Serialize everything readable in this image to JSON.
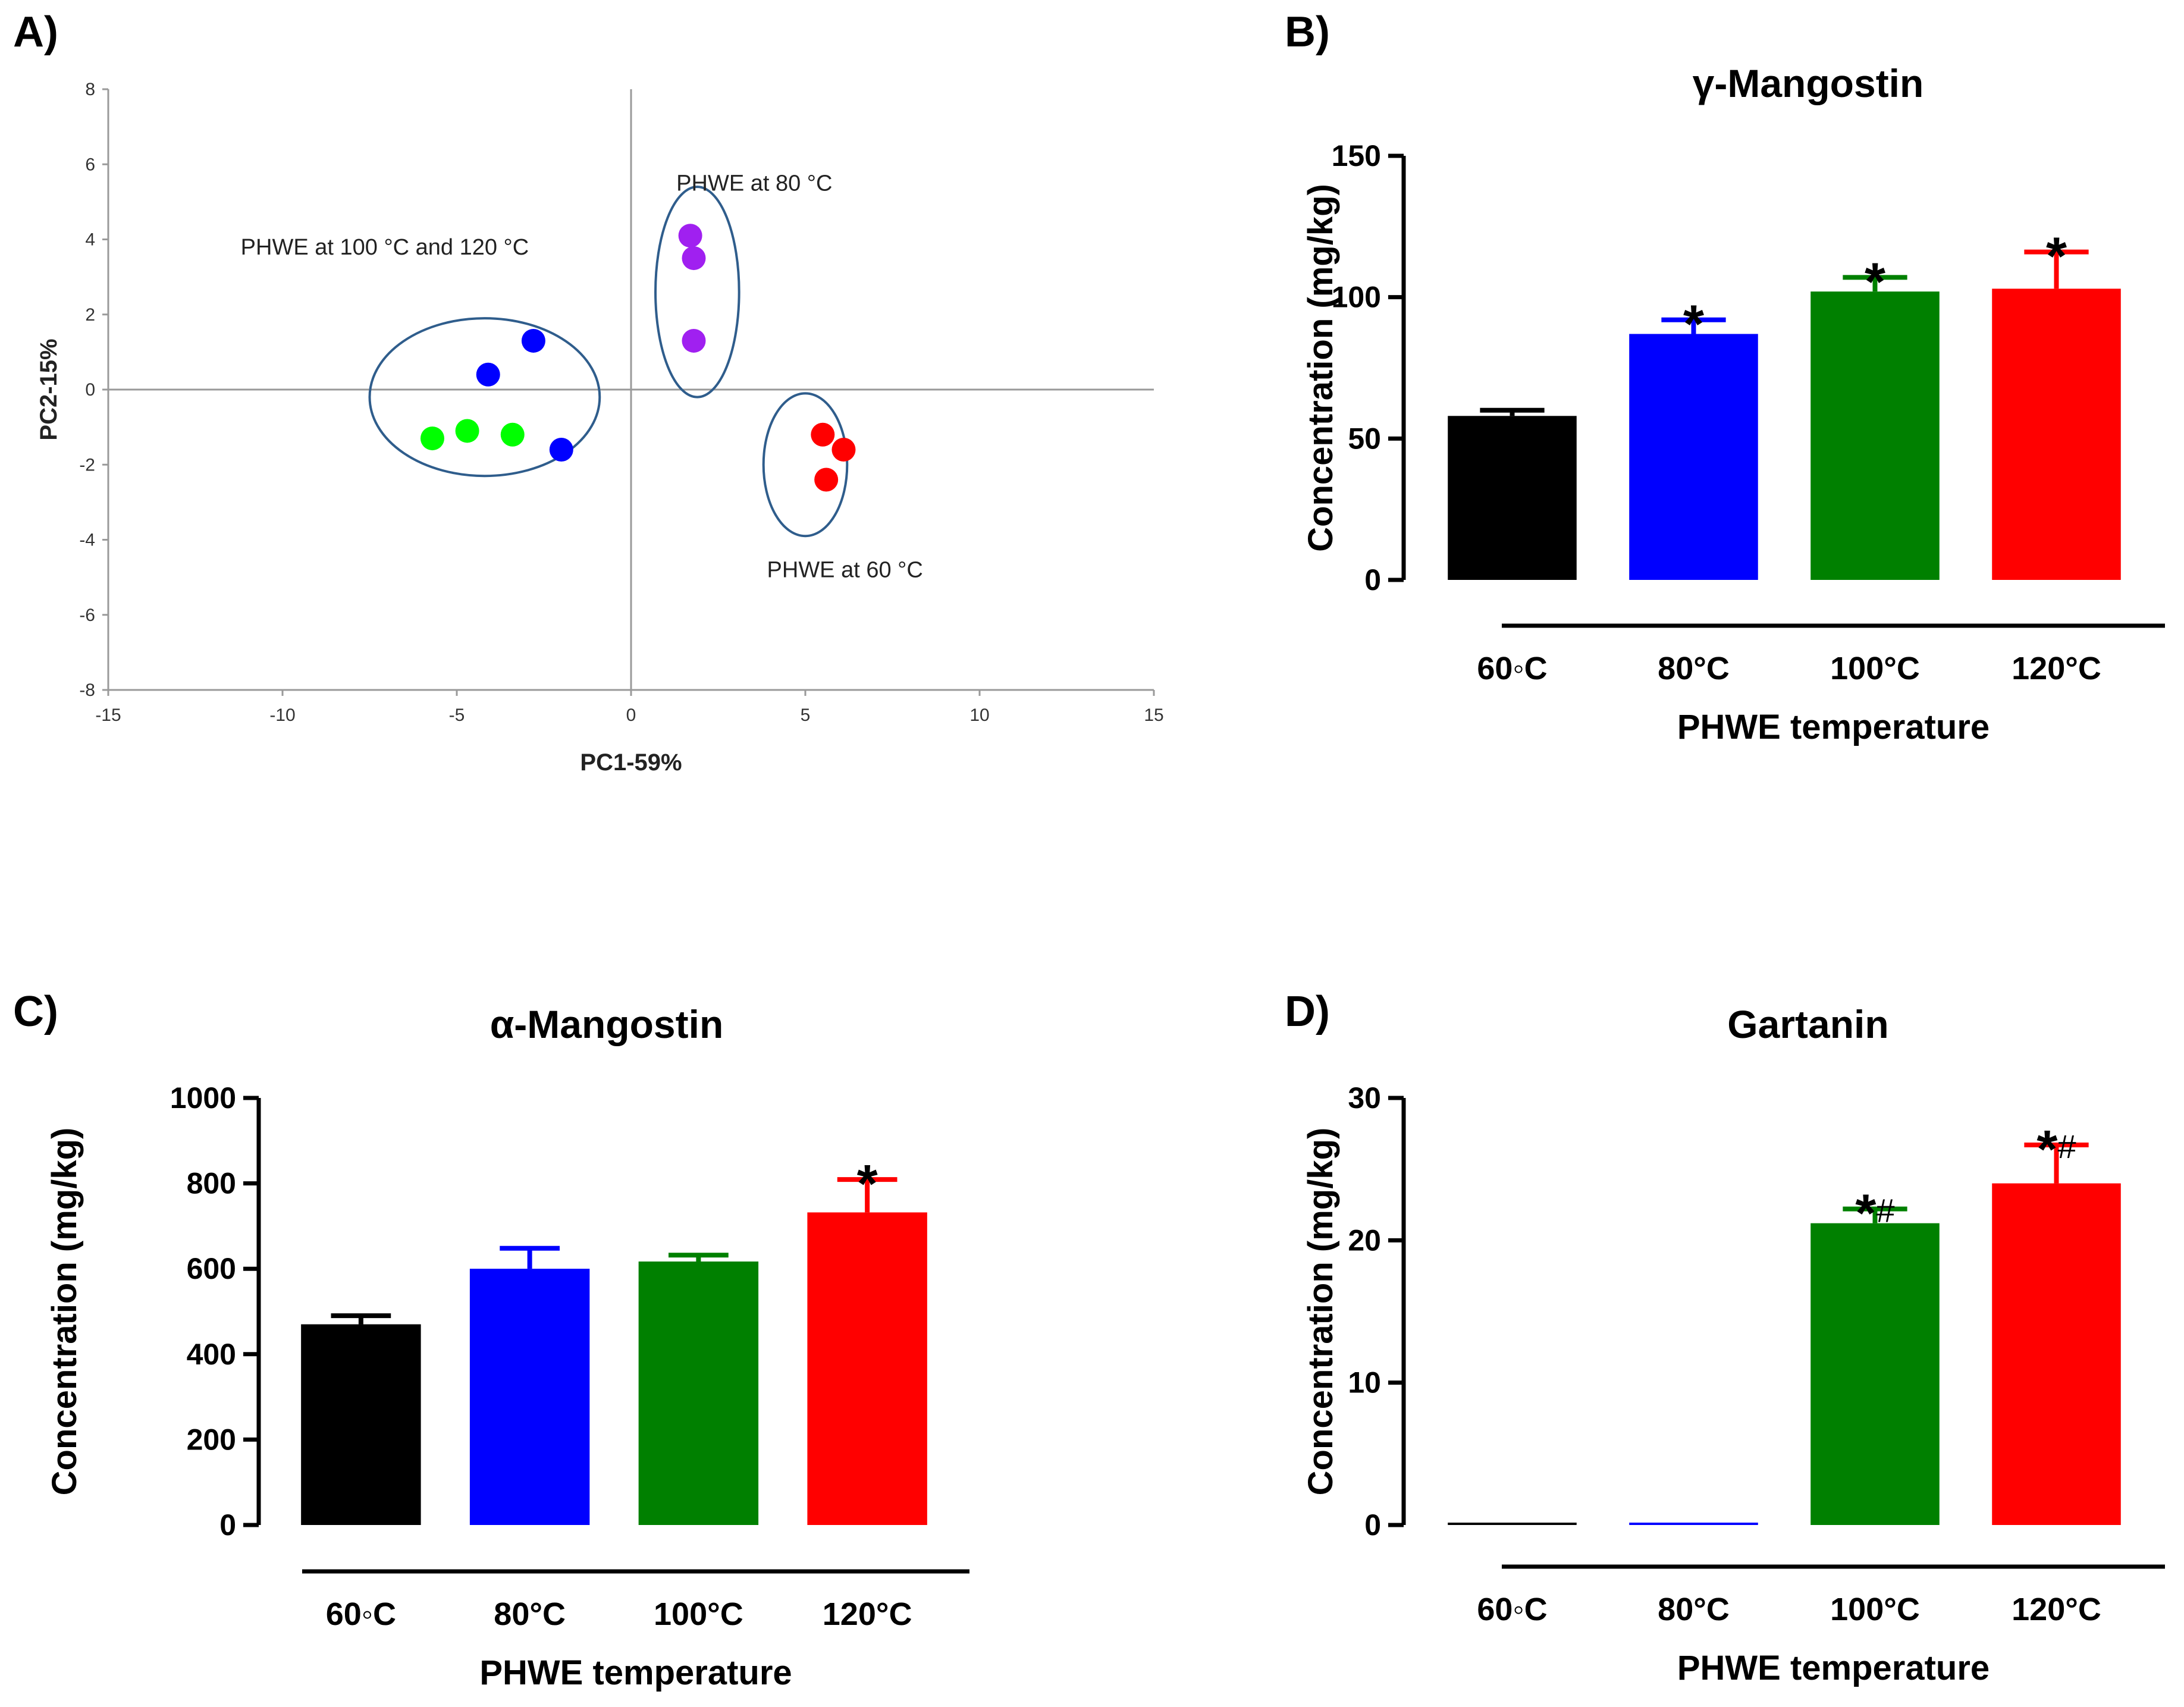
{
  "panel_labels": {
    "a": "A)",
    "b": "B)",
    "c": "C)",
    "d": "D)"
  },
  "chart_data": [
    {
      "panel": "A",
      "type": "scatter",
      "title": "",
      "xlabel": "PC1-59%",
      "ylabel": "PC2-15%",
      "xlim": [
        -15,
        15
      ],
      "ylim": [
        -8,
        8
      ],
      "xticks": [
        -15,
        -10,
        -5,
        0,
        5,
        10,
        15
      ],
      "yticks": [
        -8,
        -6,
        -4,
        -2,
        0,
        2,
        4,
        6,
        8
      ],
      "series": [
        {
          "name": "PHWE 60 °C",
          "color": "#ff0000",
          "x": [
            5.5,
            6.1,
            5.6
          ],
          "y": [
            -1.2,
            -1.6,
            -2.4
          ]
        },
        {
          "name": "PHWE 80 °C",
          "color": "#a020f0",
          "x": [
            1.7,
            1.8,
            1.8
          ],
          "y": [
            4.1,
            3.5,
            1.3
          ]
        },
        {
          "name": "PHWE 100 °C",
          "color": "#0000ff",
          "x": [
            -2.8,
            -4.1,
            -2.0
          ],
          "y": [
            1.3,
            0.4,
            -1.6
          ]
        },
        {
          "name": "PHWE 120 °C",
          "color": "#00ff00",
          "x": [
            -5.7,
            -4.7,
            -3.4
          ],
          "y": [
            -1.3,
            -1.1,
            -1.2
          ]
        }
      ],
      "annotations": [
        {
          "text": "PHWE at 80 °C",
          "x": 1.3,
          "y": 5.3
        },
        {
          "text": "PHWE at 100 °C and 120 °C",
          "x": -11.2,
          "y": 3.6
        },
        {
          "text": "PHWE at 60 °C",
          "x": 3.9,
          "y": -5.0
        }
      ],
      "ellipses": [
        {
          "cx": -4.2,
          "cy": -0.2,
          "rx": 3.3,
          "ry": 2.1
        },
        {
          "cx": 1.9,
          "cy": 2.6,
          "rx": 1.2,
          "ry": 2.8
        },
        {
          "cx": 5.0,
          "cy": -2.0,
          "rx": 1.2,
          "ry": 1.9
        }
      ]
    },
    {
      "panel": "B",
      "type": "bar",
      "title": "γ-Mangostin",
      "ylabel": "Concentration (mg/kg)",
      "xlabel": "PHWE temperature",
      "categories": [
        "60◦C",
        "80°C",
        "100°C",
        "120°C"
      ],
      "values": [
        58,
        87,
        102,
        103
      ],
      "errors": [
        2,
        5,
        5,
        13
      ],
      "colors": [
        "#000000",
        "#0000ff",
        "#008000",
        "#ff0000"
      ],
      "ylim": [
        0,
        150
      ],
      "yticks": [
        0,
        50,
        100,
        150
      ],
      "significance": [
        "",
        "*",
        "*",
        "*"
      ]
    },
    {
      "panel": "C",
      "type": "bar",
      "title": "α-Mangostin",
      "ylabel": "Concentration (mg/kg)",
      "xlabel": "PHWE temperature",
      "categories": [
        "60◦C",
        "80°C",
        "100°C",
        "120°C"
      ],
      "values": [
        470,
        600,
        617,
        732
      ],
      "errors": [
        20,
        48,
        15,
        77
      ],
      "colors": [
        "#000000",
        "#0000ff",
        "#008000",
        "#ff0000"
      ],
      "ylim": [
        0,
        1000
      ],
      "yticks": [
        0,
        200,
        400,
        600,
        800,
        1000
      ],
      "significance": [
        "",
        "",
        "",
        "*"
      ]
    },
    {
      "panel": "D",
      "type": "bar",
      "title": "Gartanin",
      "ylabel": "Concentration (mg/kg)",
      "xlabel": "PHWE temperature",
      "categories": [
        "60◦C",
        "80°C",
        "100°C",
        "120°C"
      ],
      "values": [
        0.1,
        0.1,
        21.2,
        24.0
      ],
      "errors": [
        0,
        0,
        1.0,
        2.7
      ],
      "colors": [
        "#000000",
        "#0000ff",
        "#008000",
        "#ff0000"
      ],
      "ylim": [
        0,
        30
      ],
      "yticks": [
        0,
        10,
        20,
        30
      ],
      "significance": [
        "",
        "",
        "*#",
        "*#"
      ]
    }
  ]
}
